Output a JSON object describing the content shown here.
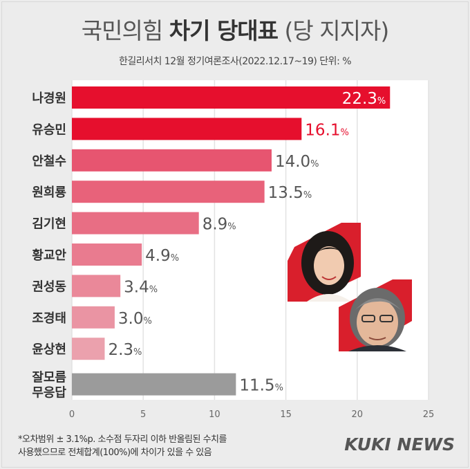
{
  "title": {
    "prefix": "국민의힘",
    "bold": "차기 당대표",
    "suffix": "(당 지지자)"
  },
  "subtitle": "한길리서치 12월 정기여론조사(2022.12.17~19) 단위: %",
  "chart_data": {
    "type": "bar",
    "orientation": "horizontal",
    "categories": [
      "나경원",
      "유승민",
      "안철수",
      "원희룡",
      "김기현",
      "황교안",
      "권성동",
      "조경태",
      "윤상현",
      "잘모름 무응답"
    ],
    "values": [
      22.3,
      16.1,
      14.0,
      13.5,
      8.9,
      4.9,
      3.4,
      3.0,
      2.3,
      11.5
    ],
    "value_labels": [
      "22.3",
      "16.1",
      "14.0",
      "13.5",
      "8.9",
      "4.9",
      "3.4",
      "3.0",
      "2.3",
      "11.5"
    ],
    "unit": "%",
    "xlim": [
      0,
      25
    ],
    "xticks": [
      "0",
      "5",
      "10",
      "15",
      "20",
      "25"
    ],
    "grid": "vertical",
    "colors": {
      "top": "#e60f2d",
      "gradient_light": "#eba1ad",
      "no_answer": "#9b9b9b",
      "label_red": "#e60f2d",
      "label_gray": "#555555"
    }
  },
  "footnote": "*오차범위 ± 3.1%p. 소수점 두자리 이하 반올림된 수치를\n사용했으므로 전체합계(100%)에 차이가 있을 수 있음",
  "logo": "KUKI NEWS",
  "photos": [
    "person-photo-1",
    "person-photo-2"
  ]
}
